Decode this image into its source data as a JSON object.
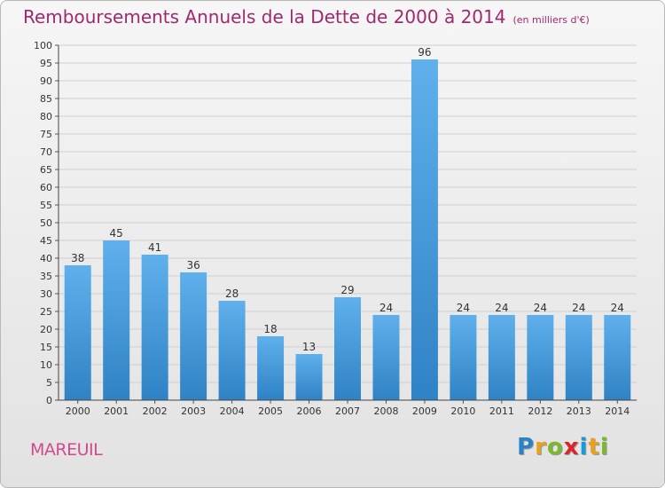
{
  "title": "Remboursements Annuels de la Dette de 2000 à 2014",
  "subtitle": "(en milliers d'€)",
  "location": "MAREUIL",
  "logo": {
    "letters": [
      "P",
      "r",
      "o",
      "x",
      "i",
      "t",
      "i"
    ],
    "colors": [
      "#2b83c6",
      "#e8a020",
      "#7cb82f",
      "#d8262b",
      "#1a9ad8",
      "#e8a020",
      "#7cb82f"
    ]
  },
  "colors": {
    "bar_light": "#5fb0ec",
    "bar_dark": "#2f82c4",
    "title": "#a0296e",
    "location": "#d24a8c"
  },
  "chart_data": {
    "type": "bar",
    "categories": [
      "2000",
      "2001",
      "2002",
      "2003",
      "2004",
      "2005",
      "2006",
      "2007",
      "2008",
      "2009",
      "2010",
      "2011",
      "2012",
      "2013",
      "2014"
    ],
    "values": [
      38,
      45,
      41,
      36,
      28,
      18,
      13,
      29,
      24,
      96,
      24,
      24,
      24,
      24,
      24
    ],
    "ylim": [
      0,
      100
    ],
    "yticks": [
      0,
      5,
      10,
      15,
      20,
      25,
      30,
      35,
      40,
      45,
      50,
      55,
      60,
      65,
      70,
      75,
      80,
      85,
      90,
      95,
      100
    ],
    "grid": true,
    "legend": "none",
    "data_labels": true
  }
}
